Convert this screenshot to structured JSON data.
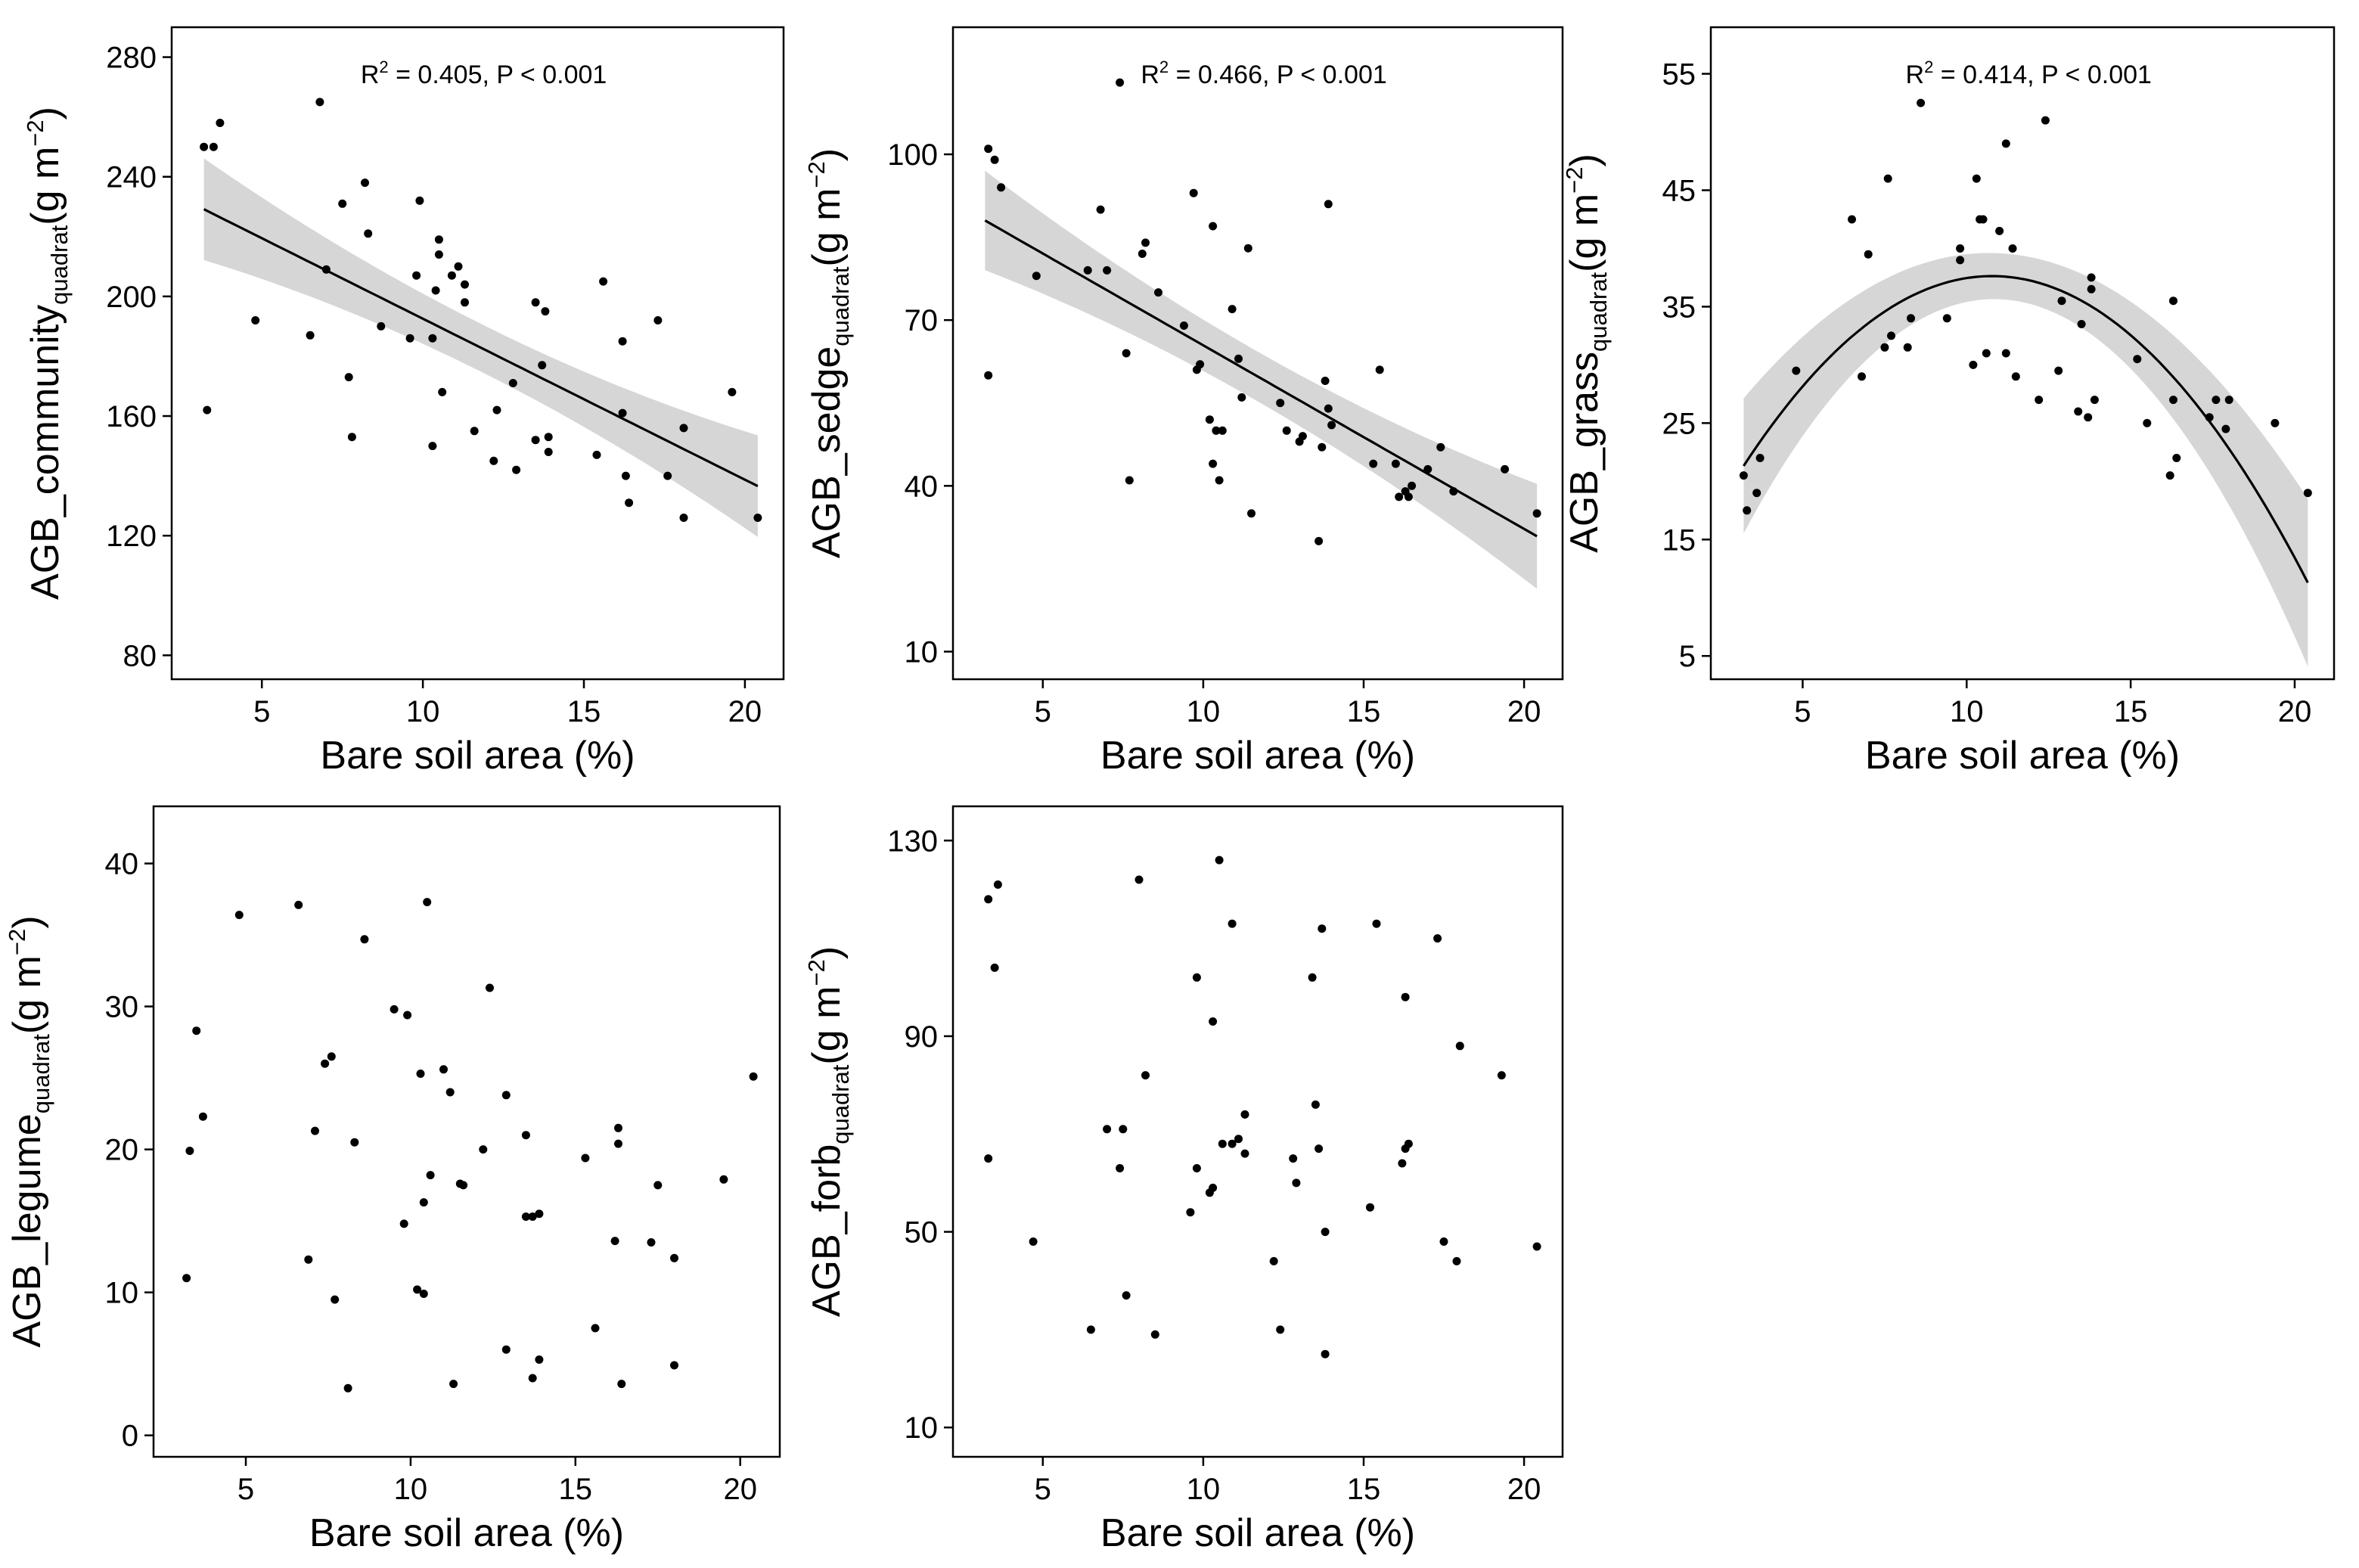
{
  "figure": {
    "x_axis_title": "Bare soil area (%)",
    "y_unit": "(g m",
    "y_unit_exp": "−2",
    "y_unit_close": ")"
  },
  "chart_data": [
    {
      "id": "community",
      "type": "scatter",
      "ylabel_main": "AGB_community",
      "ylabel_sub": "quadrat",
      "annotation": {
        "r_label": "R",
        "r_exp": "2",
        "text": " = 0.405, P < 0.001"
      },
      "xlim": [
        2.2,
        21.2
      ],
      "ylim": [
        72,
        290
      ],
      "x_ticks": [
        5,
        10,
        15,
        20
      ],
      "y_ticks": [
        80,
        120,
        160,
        200,
        240,
        280
      ],
      "fit": {
        "kind": "linear",
        "x_range": [
          3.2,
          20.4
        ],
        "coef": [
          246.37,
          -5.3828
        ],
        "ci_half_width": [
          17,
          8,
          17
        ]
      },
      "points": [
        [
          3.2,
          250
        ],
        [
          3.5,
          250
        ],
        [
          3.7,
          258
        ],
        [
          3.3,
          162
        ],
        [
          4.8,
          192
        ],
        [
          6.5,
          187
        ],
        [
          6.8,
          265
        ],
        [
          7.0,
          209
        ],
        [
          7.5,
          231
        ],
        [
          7.7,
          173
        ],
        [
          7.8,
          153
        ],
        [
          8.2,
          238
        ],
        [
          8.3,
          221
        ],
        [
          8.7,
          190
        ],
        [
          9.6,
          186
        ],
        [
          9.8,
          207
        ],
        [
          9.9,
          232
        ],
        [
          10.3,
          186
        ],
        [
          10.3,
          150
        ],
        [
          10.4,
          202
        ],
        [
          10.5,
          219
        ],
        [
          10.5,
          214
        ],
        [
          10.6,
          168
        ],
        [
          10.9,
          207
        ],
        [
          11.1,
          210
        ],
        [
          11.3,
          198
        ],
        [
          11.3,
          204
        ],
        [
          11.6,
          155
        ],
        [
          12.2,
          145
        ],
        [
          12.3,
          162
        ],
        [
          12.8,
          171
        ],
        [
          12.9,
          142
        ],
        [
          13.5,
          152
        ],
        [
          13.5,
          198
        ],
        [
          13.7,
          177
        ],
        [
          13.8,
          195
        ],
        [
          13.9,
          148
        ],
        [
          13.9,
          153
        ],
        [
          15.4,
          147
        ],
        [
          15.6,
          205
        ],
        [
          16.2,
          161
        ],
        [
          16.3,
          140
        ],
        [
          16.4,
          131
        ],
        [
          16.2,
          185
        ],
        [
          17.3,
          192
        ],
        [
          17.6,
          140
        ],
        [
          18.1,
          126
        ],
        [
          18.1,
          156
        ],
        [
          19.6,
          168
        ],
        [
          20.4,
          126
        ]
      ]
    },
    {
      "id": "sedge",
      "type": "scatter",
      "ylabel_main": "AGB_sedge",
      "ylabel_sub": "quadrat",
      "annotation": {
        "r_label": "R",
        "r_exp": "2",
        "text": " = 0.466, P < 0.001"
      },
      "xlim": [
        2.2,
        21.2
      ],
      "ylim": [
        5,
        123
      ],
      "x_ticks": [
        5,
        10,
        15,
        20
      ],
      "y_ticks": [
        10,
        40,
        70,
        100
      ],
      "fit": {
        "kind": "linear",
        "x_range": [
          3.2,
          20.4
        ],
        "coef": [
          98.66,
          -3.3227
        ],
        "ci_half_width": [
          9,
          4.5,
          9.5
        ]
      },
      "points": [
        [
          3.3,
          101
        ],
        [
          3.3,
          60
        ],
        [
          3.5,
          99
        ],
        [
          3.7,
          94
        ],
        [
          4.8,
          78
        ],
        [
          6.4,
          79
        ],
        [
          6.8,
          90
        ],
        [
          7.0,
          79
        ],
        [
          7.4,
          113
        ],
        [
          7.6,
          64
        ],
        [
          7.7,
          41
        ],
        [
          8.1,
          82
        ],
        [
          8.2,
          84
        ],
        [
          8.6,
          75
        ],
        [
          9.4,
          69
        ],
        [
          9.7,
          93
        ],
        [
          9.8,
          61
        ],
        [
          9.9,
          62
        ],
        [
          10.2,
          52
        ],
        [
          10.3,
          44
        ],
        [
          10.3,
          87
        ],
        [
          10.4,
          50
        ],
        [
          10.5,
          41
        ],
        [
          10.6,
          50
        ],
        [
          10.9,
          72
        ],
        [
          11.1,
          63
        ],
        [
          11.2,
          56
        ],
        [
          11.4,
          83
        ],
        [
          11.5,
          35
        ],
        [
          12.4,
          55
        ],
        [
          12.6,
          50
        ],
        [
          13.0,
          48
        ],
        [
          13.1,
          49
        ],
        [
          13.6,
          30
        ],
        [
          13.7,
          47
        ],
        [
          13.8,
          59
        ],
        [
          13.9,
          91
        ],
        [
          13.9,
          54
        ],
        [
          14.0,
          51
        ],
        [
          15.5,
          61
        ],
        [
          15.3,
          44
        ],
        [
          16.0,
          44
        ],
        [
          16.1,
          38
        ],
        [
          16.3,
          39
        ],
        [
          16.4,
          38
        ],
        [
          16.5,
          40
        ],
        [
          17.0,
          43
        ],
        [
          17.4,
          47
        ],
        [
          17.8,
          39
        ],
        [
          19.4,
          43
        ],
        [
          20.4,
          35
        ]
      ]
    },
    {
      "id": "grass",
      "type": "scatter",
      "ylabel_main": "AGB_grass",
      "ylabel_sub": "quadrat",
      "annotation": {
        "r_label": "R",
        "r_exp": "2",
        "text": " = 0.414, P < 0.001"
      },
      "xlim": [
        2.2,
        21.2
      ],
      "ylim": [
        3,
        59
      ],
      "x_ticks": [
        5,
        10,
        15,
        20
      ],
      "y_ticks": [
        5,
        15,
        25,
        35,
        45,
        55
      ],
      "fit": {
        "kind": "quadratic",
        "x_range": [
          3.2,
          20.4
        ],
        "coef": [
          4.636,
          6.124,
          -0.2842
        ],
        "ci_half_width": [
          5.8,
          2.0,
          7.2
        ]
      },
      "points": [
        [
          3.2,
          20.5
        ],
        [
          3.3,
          17.5
        ],
        [
          3.6,
          19
        ],
        [
          3.7,
          22
        ],
        [
          4.8,
          29.5
        ],
        [
          6.5,
          42.5
        ],
        [
          6.8,
          29
        ],
        [
          7.0,
          39.5
        ],
        [
          7.5,
          31.5
        ],
        [
          7.6,
          46
        ],
        [
          7.7,
          32.5
        ],
        [
          8.2,
          31.5
        ],
        [
          8.3,
          34
        ],
        [
          8.6,
          52.5
        ],
        [
          9.4,
          34
        ],
        [
          9.8,
          40
        ],
        [
          9.8,
          39
        ],
        [
          10.2,
          30
        ],
        [
          10.3,
          46
        ],
        [
          10.4,
          42.5
        ],
        [
          10.5,
          42.5
        ],
        [
          10.6,
          31
        ],
        [
          11.0,
          41.5
        ],
        [
          11.2,
          49
        ],
        [
          11.2,
          31
        ],
        [
          11.4,
          40
        ],
        [
          11.5,
          29
        ],
        [
          12.2,
          27
        ],
        [
          12.4,
          51
        ],
        [
          12.8,
          29.5
        ],
        [
          12.9,
          35.5
        ],
        [
          13.4,
          26
        ],
        [
          13.5,
          33.5
        ],
        [
          13.7,
          25.5
        ],
        [
          13.8,
          37.5
        ],
        [
          13.9,
          27
        ],
        [
          13.8,
          36.5
        ],
        [
          15.2,
          30.5
        ],
        [
          15.5,
          25
        ],
        [
          16.2,
          20.5
        ],
        [
          16.3,
          35.5
        ],
        [
          16.3,
          27
        ],
        [
          16.4,
          22
        ],
        [
          17.4,
          25.5
        ],
        [
          17.6,
          27
        ],
        [
          17.9,
          24.5
        ],
        [
          18.0,
          27
        ],
        [
          19.4,
          25
        ],
        [
          20.4,
          19
        ]
      ]
    },
    {
      "id": "legume",
      "type": "scatter",
      "ylabel_main": "AGB_legume",
      "ylabel_sub": "quadrat",
      "xlim": [
        2.2,
        21.2
      ],
      "ylim": [
        -1.5,
        44
      ],
      "x_ticks": [
        5,
        10,
        15,
        20
      ],
      "y_ticks": [
        0,
        10,
        20,
        30,
        40
      ],
      "points": [
        [
          3.2,
          11
        ],
        [
          3.3,
          19.9
        ],
        [
          3.5,
          28.3
        ],
        [
          3.7,
          22.3
        ],
        [
          4.8,
          36.4
        ],
        [
          6.6,
          37.1
        ],
        [
          6.9,
          12.3
        ],
        [
          7.1,
          21.3
        ],
        [
          7.4,
          26
        ],
        [
          7.6,
          26.5
        ],
        [
          7.7,
          9.5
        ],
        [
          8.1,
          3.3
        ],
        [
          8.3,
          20.5
        ],
        [
          8.6,
          34.7
        ],
        [
          9.5,
          29.8
        ],
        [
          9.8,
          14.8
        ],
        [
          9.9,
          29.4
        ],
        [
          10.2,
          10.2
        ],
        [
          10.3,
          25.3
        ],
        [
          10.4,
          16.3
        ],
        [
          10.4,
          9.9
        ],
        [
          10.5,
          37.3
        ],
        [
          10.6,
          18.2
        ],
        [
          11.0,
          25.6
        ],
        [
          11.2,
          24
        ],
        [
          11.3,
          3.6
        ],
        [
          11.5,
          17.6
        ],
        [
          11.6,
          17.5
        ],
        [
          12.2,
          20
        ],
        [
          12.4,
          31.3
        ],
        [
          12.9,
          23.8
        ],
        [
          12.9,
          6
        ],
        [
          13.5,
          21
        ],
        [
          13.5,
          15.3
        ],
        [
          13.7,
          15.3
        ],
        [
          13.7,
          4
        ],
        [
          13.9,
          5.3
        ],
        [
          13.9,
          15.5
        ],
        [
          15.3,
          19.4
        ],
        [
          15.6,
          7.5
        ],
        [
          16.2,
          13.6
        ],
        [
          16.3,
          20.4
        ],
        [
          16.3,
          21.5
        ],
        [
          16.4,
          3.6
        ],
        [
          17.3,
          13.5
        ],
        [
          17.5,
          17.5
        ],
        [
          18.0,
          12.4
        ],
        [
          18.0,
          4.9
        ],
        [
          19.5,
          17.9
        ],
        [
          20.4,
          25.1
        ]
      ]
    },
    {
      "id": "forb",
      "type": "scatter",
      "ylabel_main": "AGB_forb",
      "ylabel_sub": "quadrat",
      "xlim": [
        2.2,
        21.2
      ],
      "ylim": [
        4,
        137
      ],
      "x_ticks": [
        5,
        10,
        15,
        20
      ],
      "y_ticks": [
        10,
        50,
        90,
        130
      ],
      "points": [
        [
          3.3,
          118
        ],
        [
          3.3,
          65
        ],
        [
          3.5,
          104
        ],
        [
          3.6,
          121
        ],
        [
          4.7,
          48
        ],
        [
          6.5,
          30
        ],
        [
          7.0,
          71
        ],
        [
          7.4,
          63
        ],
        [
          7.5,
          71
        ],
        [
          7.6,
          37
        ],
        [
          8.0,
          122
        ],
        [
          8.2,
          82
        ],
        [
          8.5,
          29
        ],
        [
          9.6,
          54
        ],
        [
          9.8,
          102
        ],
        [
          9.8,
          63
        ],
        [
          10.2,
          58
        ],
        [
          10.3,
          59
        ],
        [
          10.3,
          93
        ],
        [
          10.5,
          126
        ],
        [
          10.6,
          68
        ],
        [
          10.9,
          113
        ],
        [
          10.9,
          68
        ],
        [
          11.1,
          69
        ],
        [
          11.3,
          74
        ],
        [
          11.3,
          66
        ],
        [
          12.2,
          44
        ],
        [
          12.4,
          30
        ],
        [
          12.8,
          65
        ],
        [
          12.9,
          60
        ],
        [
          13.4,
          102
        ],
        [
          13.5,
          76
        ],
        [
          13.6,
          67
        ],
        [
          13.7,
          112
        ],
        [
          13.8,
          25
        ],
        [
          13.8,
          50
        ],
        [
          15.2,
          55
        ],
        [
          15.4,
          113
        ],
        [
          16.2,
          64
        ],
        [
          16.3,
          67
        ],
        [
          16.3,
          98
        ],
        [
          16.4,
          68
        ],
        [
          17.3,
          110
        ],
        [
          17.5,
          48
        ],
        [
          17.9,
          44
        ],
        [
          18.0,
          88
        ],
        [
          19.3,
          82
        ],
        [
          20.4,
          47
        ]
      ]
    }
  ]
}
